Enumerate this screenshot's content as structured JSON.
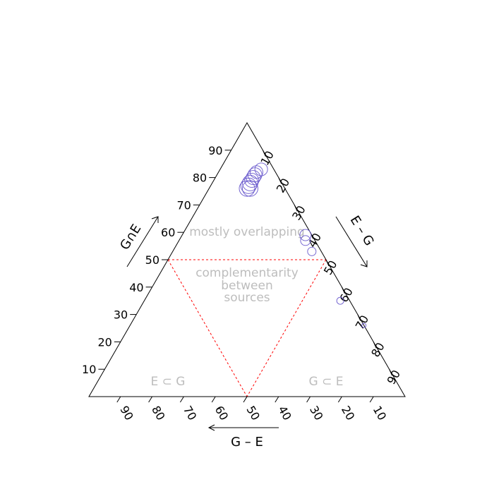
{
  "chart_data": {
    "type": "scatter",
    "subtype": "ternary",
    "title": "",
    "axes": {
      "left": {
        "label": "G∩E",
        "ticks": [
          10,
          20,
          30,
          40,
          50,
          60,
          70,
          80,
          90
        ]
      },
      "right": {
        "label": "E – G",
        "ticks": [
          10,
          20,
          30,
          40,
          50,
          60,
          70,
          80,
          90
        ]
      },
      "bottom": {
        "label": "G – E",
        "ticks": [
          90,
          80,
          70,
          60,
          50,
          40,
          30,
          20,
          10
        ]
      }
    },
    "region_labels": {
      "top": "mostly overlapping",
      "center": [
        "complementarity",
        "between",
        "sources"
      ],
      "bottom_left": "E ⊂ G",
      "bottom_right": "G ⊂ E"
    },
    "colors": {
      "points": "#6a5acd",
      "reference": "#ff0000",
      "region_text": "#bdbdbd"
    },
    "points": [
      {
        "intersection": 83,
        "e_minus_g": 13,
        "g_minus_e": 4,
        "size": 9
      },
      {
        "intersection": 82,
        "e_minus_g": 12,
        "g_minus_e": 6,
        "size": 9
      },
      {
        "intersection": 81,
        "e_minus_g": 12,
        "g_minus_e": 7,
        "size": 10
      },
      {
        "intersection": 80,
        "e_minus_g": 12,
        "g_minus_e": 8,
        "size": 10
      },
      {
        "intersection": 79,
        "e_minus_g": 12,
        "g_minus_e": 9,
        "size": 10
      },
      {
        "intersection": 78,
        "e_minus_g": 12,
        "g_minus_e": 10,
        "size": 11
      },
      {
        "intersection": 77,
        "e_minus_g": 12,
        "g_minus_e": 11,
        "size": 11
      },
      {
        "intersection": 76,
        "e_minus_g": 13,
        "g_minus_e": 11,
        "size": 11
      },
      {
        "intersection": 76,
        "e_minus_g": 12,
        "g_minus_e": 12,
        "size": 11
      },
      {
        "intersection": 59,
        "e_minus_g": 39,
        "g_minus_e": 2,
        "size": 8
      },
      {
        "intersection": 57,
        "e_minus_g": 40,
        "g_minus_e": 3,
        "size": 7
      },
      {
        "intersection": 53,
        "e_minus_g": 44,
        "g_minus_e": 3,
        "size": 6
      },
      {
        "intersection": 35,
        "e_minus_g": 62,
        "g_minus_e": 3,
        "size": 5
      },
      {
        "intersection": 26,
        "e_minus_g": 74,
        "g_minus_e": 0,
        "size": 3
      }
    ],
    "reference_lines": [
      {
        "from": {
          "intersection": 50,
          "e_minus_g": 0,
          "g_minus_e": 50
        },
        "to": {
          "intersection": 50,
          "e_minus_g": 50,
          "g_minus_e": 0
        }
      },
      {
        "from": {
          "intersection": 50,
          "e_minus_g": 0,
          "g_minus_e": 50
        },
        "to": {
          "intersection": 0,
          "e_minus_g": 50,
          "g_minus_e": 50
        }
      },
      {
        "from": {
          "intersection": 50,
          "e_minus_g": 50,
          "g_minus_e": 0
        },
        "to": {
          "intersection": 0,
          "e_minus_g": 50,
          "g_minus_e": 50
        }
      }
    ]
  }
}
